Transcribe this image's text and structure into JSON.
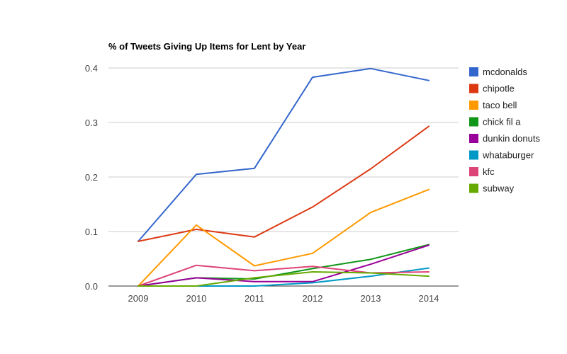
{
  "chart_data": {
    "type": "line",
    "title": "% of Tweets Giving Up Items for Lent by Year",
    "x": [
      "2009",
      "2010",
      "2011",
      "2012",
      "2013",
      "2014"
    ],
    "ylim": [
      0,
      0.4
    ],
    "yticks": [
      0.0,
      0.1,
      0.2,
      0.3,
      0.4
    ],
    "ytick_labels": [
      "0.0",
      "0.1",
      "0.2",
      "0.3",
      "0.4"
    ],
    "grid": true,
    "legend_position": "right",
    "series": [
      {
        "name": "mcdonalds",
        "color": "#3366cc",
        "values": [
          0.082,
          0.205,
          0.216,
          0.383,
          0.399,
          0.377
        ]
      },
      {
        "name": "chipotle",
        "color": "#dc3912",
        "values": [
          0.082,
          0.104,
          0.09,
          0.145,
          0.215,
          0.293
        ]
      },
      {
        "name": "taco bell",
        "color": "#ff9900",
        "values": [
          0.0,
          0.112,
          0.037,
          0.06,
          0.135,
          0.177
        ]
      },
      {
        "name": "chick fil a",
        "color": "#109618",
        "values": [
          0.0,
          0.015,
          0.013,
          0.032,
          0.049,
          0.076
        ]
      },
      {
        "name": "dunkin donuts",
        "color": "#990099",
        "values": [
          0.0,
          0.015,
          0.008,
          0.008,
          0.04,
          0.075
        ]
      },
      {
        "name": "whataburger",
        "color": "#0099c6",
        "values": [
          0.0,
          0.0,
          0.0,
          0.006,
          0.018,
          0.033
        ]
      },
      {
        "name": "kfc",
        "color": "#dd4477",
        "values": [
          0.0,
          0.038,
          0.028,
          0.036,
          0.024,
          0.026
        ]
      },
      {
        "name": "subway",
        "color": "#66aa00",
        "values": [
          0.0,
          0.0,
          0.015,
          0.026,
          0.024,
          0.018
        ]
      }
    ]
  }
}
